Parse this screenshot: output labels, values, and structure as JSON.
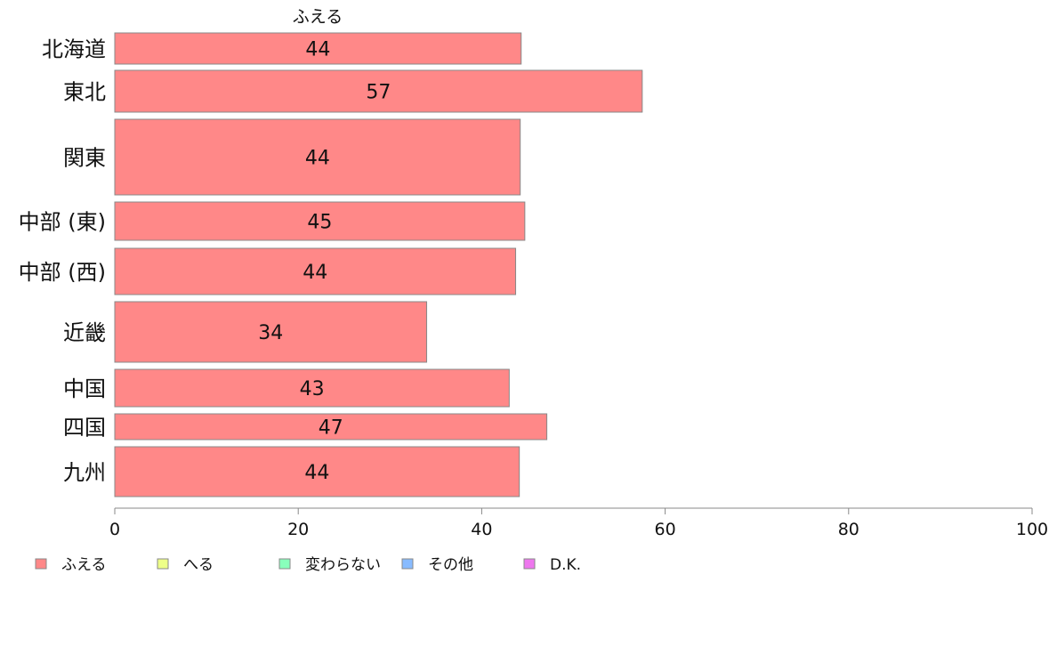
{
  "chart_data": {
    "type": "bar",
    "orientation": "horizontal",
    "stacked": true,
    "column_header": "ふえる",
    "categories": [
      "北海道",
      "東北",
      "関東",
      "中部 (東)",
      "中部 (西)",
      "近畿",
      "中国",
      "四国",
      "九州"
    ],
    "series": [
      {
        "name": "ふえる",
        "color": "#ff8888",
        "values": [
          44.3,
          57.5,
          44.2,
          44.7,
          43.7,
          34.0,
          43.0,
          47.1,
          44.1
        ],
        "labels": [
          "44",
          "57",
          "44",
          "45",
          "44",
          "34",
          "43",
          "47",
          "44"
        ]
      }
    ],
    "x_ticks": [
      0,
      20,
      40,
      60,
      80,
      100
    ],
    "xlim": [
      0,
      100
    ],
    "grid": false,
    "legend_position": "bottom"
  },
  "legend": [
    {
      "name": "ふえる",
      "color": "#ff8888"
    },
    {
      "name": "へる",
      "color": "#eeff88"
    },
    {
      "name": "変わらない",
      "color": "#88ffbb"
    },
    {
      "name": "その他",
      "color": "#88bbff"
    },
    {
      "name": "D.K.",
      "color": "#ee77ee"
    }
  ]
}
